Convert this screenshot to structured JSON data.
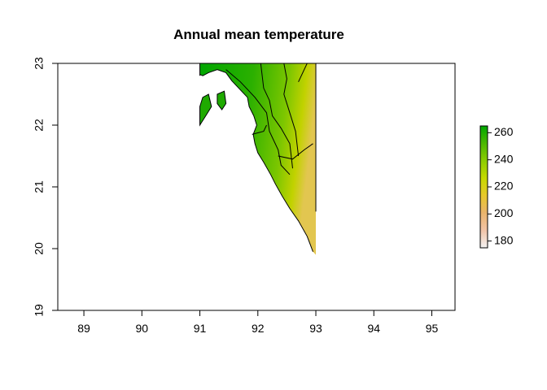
{
  "chart_data": {
    "type": "heatmap",
    "title": "Annual mean temperature",
    "xlabel": "",
    "ylabel": "",
    "xlim": [
      88.55,
      95.4
    ],
    "ylim": [
      19,
      23
    ],
    "x_ticks": [
      "89",
      "90",
      "91",
      "92",
      "93",
      "94",
      "95"
    ],
    "y_ticks": [
      "19",
      "20",
      "21",
      "22",
      "23"
    ],
    "grid": false,
    "legend": {
      "type": "colorbar",
      "placement": "right",
      "range": [
        175,
        265
      ],
      "ticks": [
        "180",
        "200",
        "220",
        "240",
        "260"
      ],
      "colors": [
        "#f2f2f2",
        "#f1c4a8",
        "#eab46c",
        "#e7c82a",
        "#c6d900",
        "#8ccc00",
        "#4cb800",
        "#00a600"
      ]
    },
    "raster_extent": {
      "xmin": 91.0,
      "xmax": 93.0,
      "ymin": 19.9,
      "ymax": 23.0
    },
    "coastline": [
      [
        91.0,
        23.0
      ],
      [
        93.0,
        23.0
      ],
      [
        93.0,
        19.9
      ],
      [
        92.95,
        19.95
      ],
      [
        92.85,
        20.2
      ],
      [
        92.7,
        20.45
      ],
      [
        92.55,
        20.65
      ],
      [
        92.42,
        20.85
      ],
      [
        92.3,
        21.05
      ],
      [
        92.22,
        21.2
      ],
      [
        92.1,
        21.4
      ],
      [
        92.0,
        21.55
      ],
      [
        91.95,
        21.7
      ],
      [
        91.92,
        21.85
      ],
      [
        91.98,
        22.0
      ],
      [
        91.93,
        22.15
      ],
      [
        91.85,
        22.3
      ],
      [
        91.82,
        22.45
      ],
      [
        91.72,
        22.55
      ],
      [
        91.55,
        22.72
      ],
      [
        91.45,
        22.85
      ],
      [
        91.3,
        22.9
      ],
      [
        91.15,
        22.85
      ],
      [
        91.05,
        22.8
      ],
      [
        91.0,
        22.82
      ]
    ],
    "admin_boundaries": [
      [
        [
          91.45,
          22.9
        ],
        [
          91.7,
          22.7
        ],
        [
          91.95,
          22.45
        ],
        [
          92.15,
          22.2
        ],
        [
          92.2,
          21.9
        ],
        [
          92.35,
          21.6
        ],
        [
          92.4,
          21.35
        ],
        [
          92.55,
          21.2
        ]
      ],
      [
        [
          92.05,
          23.0
        ],
        [
          92.1,
          22.6
        ],
        [
          92.2,
          22.4
        ],
        [
          92.25,
          22.15
        ],
        [
          92.4,
          21.95
        ],
        [
          92.55,
          21.7
        ],
        [
          92.6,
          21.3
        ]
      ],
      [
        [
          92.45,
          23.0
        ],
        [
          92.5,
          22.75
        ],
        [
          92.45,
          22.5
        ],
        [
          92.55,
          22.2
        ],
        [
          92.65,
          21.9
        ],
        [
          92.7,
          21.5
        ]
      ],
      [
        [
          92.85,
          23.0
        ],
        [
          92.7,
          22.7
        ]
      ],
      [
        [
          92.35,
          21.5
        ],
        [
          92.6,
          21.45
        ],
        [
          92.8,
          21.6
        ],
        [
          92.95,
          21.7
        ]
      ],
      [
        [
          91.9,
          21.85
        ],
        [
          92.1,
          21.9
        ],
        [
          92.15,
          22.0
        ]
      ]
    ],
    "islands": [
      [
        [
          91.0,
          22.0
        ],
        [
          91.1,
          22.15
        ],
        [
          91.2,
          22.3
        ],
        [
          91.15,
          22.5
        ],
        [
          91.05,
          22.45
        ],
        [
          91.0,
          22.3
        ]
      ],
      [
        [
          91.3,
          22.5
        ],
        [
          91.42,
          22.55
        ],
        [
          91.45,
          22.35
        ],
        [
          91.38,
          22.25
        ],
        [
          91.3,
          22.35
        ]
      ]
    ]
  }
}
